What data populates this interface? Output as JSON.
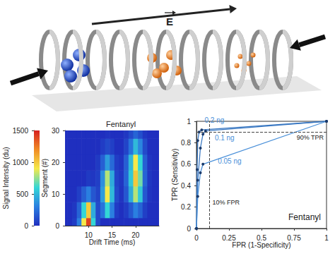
{
  "diagram": {
    "field_label": "E"
  },
  "chart_data": [
    {
      "type": "heatmap",
      "annotation": "Fentanyl",
      "xlabel": "Drift Time (ms)",
      "ylabel": "Segment (#)",
      "x": [
        5,
        6,
        7,
        8,
        9,
        10,
        11,
        12,
        13,
        14,
        15,
        16,
        17,
        18,
        19,
        20,
        21,
        22,
        23,
        24,
        25
      ],
      "y": [
        0,
        5,
        10,
        15,
        20,
        25,
        30
      ],
      "values": [
        [
          0,
          0,
          50,
          300,
          900,
          1400,
          600,
          100,
          0,
          0,
          0,
          0,
          0,
          0,
          0,
          0,
          0,
          0,
          0,
          0,
          0
        ],
        [
          0,
          0,
          30,
          200,
          600,
          1000,
          450,
          100,
          250,
          600,
          300,
          50,
          0,
          50,
          150,
          300,
          200,
          60,
          0,
          0,
          0
        ],
        [
          0,
          0,
          0,
          60,
          180,
          300,
          150,
          80,
          400,
          900,
          500,
          100,
          20,
          150,
          450,
          800,
          550,
          150,
          20,
          0,
          0
        ],
        [
          0,
          0,
          0,
          0,
          0,
          40,
          30,
          60,
          350,
          800,
          450,
          80,
          30,
          200,
          550,
          1000,
          700,
          200,
          30,
          0,
          0
        ],
        [
          0,
          0,
          0,
          0,
          0,
          0,
          0,
          40,
          180,
          400,
          220,
          50,
          20,
          180,
          500,
          900,
          600,
          180,
          20,
          0,
          0
        ],
        [
          0,
          0,
          0,
          0,
          0,
          0,
          0,
          0,
          50,
          100,
          60,
          0,
          0,
          80,
          250,
          500,
          320,
          100,
          0,
          0,
          0
        ],
        [
          0,
          0,
          0,
          0,
          0,
          0,
          0,
          0,
          0,
          20,
          0,
          0,
          0,
          30,
          100,
          200,
          120,
          30,
          0,
          0,
          0
        ]
      ],
      "xlim": [
        5,
        25
      ],
      "xticks": [
        10,
        15,
        20
      ],
      "ylim": [
        0,
        30
      ],
      "yticks": [
        0,
        10,
        20,
        30
      ],
      "colorbar": {
        "label": "Signal Intensity (du)",
        "range": [
          0,
          1500
        ],
        "ticks": [
          0,
          500,
          1000,
          1500
        ]
      }
    },
    {
      "type": "line",
      "annotation": "Fentanyl",
      "xlabel": "FPR (1-Specificity)",
      "ylabel": "TPR (Sensitivity)",
      "xlim": [
        0,
        1
      ],
      "xticks": [
        0,
        0.25,
        0.5,
        0.75,
        1
      ],
      "ylim": [
        0,
        1
      ],
      "yticks": [
        0,
        0.2,
        0.4,
        0.6,
        0.8,
        1
      ],
      "marker": "circle",
      "series": [
        {
          "name": "0.2 ng",
          "color": "#3a78c2",
          "x": [
            0,
            0.005,
            0.01,
            0.02,
            0.04,
            1
          ],
          "values": [
            0,
            0.55,
            0.82,
            0.9,
            0.92,
            1
          ]
        },
        {
          "name": "0.1 ng",
          "color": "#3a78c2",
          "x": [
            0,
            0.01,
            0.03,
            0.05,
            0.07,
            1
          ],
          "values": [
            0,
            0.45,
            0.75,
            0.88,
            0.91,
            1
          ]
        },
        {
          "name": "0.05 ng",
          "color": "#4a90d9",
          "x": [
            0,
            0.01,
            0.03,
            0.05,
            1
          ],
          "values": [
            0,
            0.3,
            0.52,
            0.6,
            1
          ]
        }
      ],
      "reference_lines": [
        {
          "axis": "y",
          "value": 0.9,
          "label": "90% TPR",
          "line_style": "dashed"
        },
        {
          "axis": "x",
          "value": 0.1,
          "label": "10% FPR",
          "line_style": "dashed"
        }
      ]
    }
  ]
}
